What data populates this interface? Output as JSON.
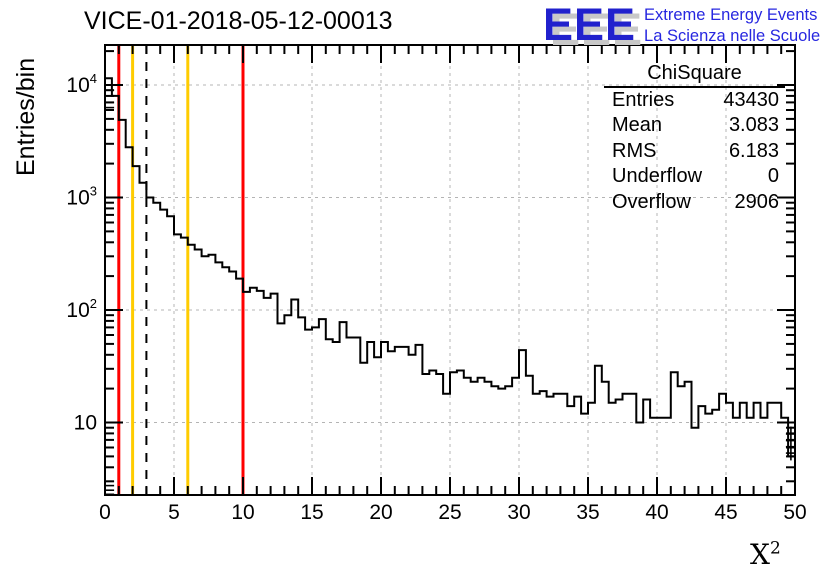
{
  "title": "VICE-01-2018-05-12-00013",
  "logo": {
    "acronym": "EEE",
    "line1": "Extreme Energy Events",
    "line2": "La Scienza nelle Scuole",
    "accent_color": "#2121cd",
    "shadow_color": "#c8c8c8"
  },
  "stats": {
    "title": "ChiSquare",
    "rows": [
      {
        "label": "Entries",
        "value": "43430"
      },
      {
        "label": "Mean",
        "value": "3.083"
      },
      {
        "label": "RMS",
        "value": "6.183"
      },
      {
        "label": "Underflow",
        "value": "0"
      },
      {
        "label": "Overflow",
        "value": "2906"
      }
    ]
  },
  "chart_data": {
    "type": "bar",
    "subtype": "step-histogram",
    "title": "VICE-01-2018-05-12-00013",
    "xlabel_base": "X",
    "xlabel_exp": "2",
    "ylabel": "Entries/bin",
    "x_range": [
      0,
      50
    ],
    "y_scale": "log",
    "y_range": [
      2.27,
      22700
    ],
    "x_major_ticks": [
      0,
      5,
      10,
      15,
      20,
      25,
      30,
      35,
      40,
      45,
      50
    ],
    "x_minor_step": 1,
    "y_major_ticks": [
      10,
      100,
      1000,
      10000
    ],
    "grid": "dashed",
    "grid_color": "#b4b4b4",
    "line_color": "#000000",
    "bin_start": 0,
    "bin_width": 0.5,
    "bin_counts": [
      11500,
      8000,
      4900,
      2800,
      1900,
      1350,
      1000,
      900,
      780,
      680,
      470,
      440,
      380,
      345,
      300,
      310,
      265,
      240,
      220,
      190,
      145,
      158,
      148,
      128,
      140,
      76,
      90,
      124,
      86,
      67,
      70,
      83,
      55,
      52,
      78,
      57,
      57,
      34,
      52,
      38,
      52,
      43,
      47,
      47,
      40,
      49,
      27,
      29,
      27,
      18,
      28,
      29,
      25,
      23,
      25,
      23,
      21,
      20,
      21,
      25,
      44,
      26,
      18,
      19,
      17,
      18,
      18,
      14,
      17,
      12,
      15,
      32,
      23,
      15,
      16,
      18,
      18,
      10,
      16,
      11,
      11,
      11,
      28,
      21,
      23,
      9,
      14,
      12,
      13,
      18,
      15,
      11,
      15,
      11,
      15,
      11,
      15,
      15,
      11,
      5
    ],
    "marker_lines": [
      {
        "x": 1,
        "color": "#ff0000",
        "style": "solid"
      },
      {
        "x": 2,
        "color": "#ffcc00",
        "style": "solid"
      },
      {
        "x": 3,
        "color": "#000000",
        "style": "dashed"
      },
      {
        "x": 6,
        "color": "#ffcc00",
        "style": "solid"
      },
      {
        "x": 10,
        "color": "#ff0000",
        "style": "solid"
      }
    ],
    "error_glyphs": [
      {
        "x": 0.3,
        "tick_values": [
          9000,
          8000,
          7000,
          6300
        ]
      },
      {
        "x": 0.3,
        "tick_values": [
          3.0,
          2.75,
          2.5,
          2.3
        ]
      },
      {
        "x": 49.7,
        "tick_values": [
          7.9,
          6.9,
          6.1,
          5.35
        ],
        "bar_range": [
          9.2,
          4.6
        ]
      }
    ]
  }
}
